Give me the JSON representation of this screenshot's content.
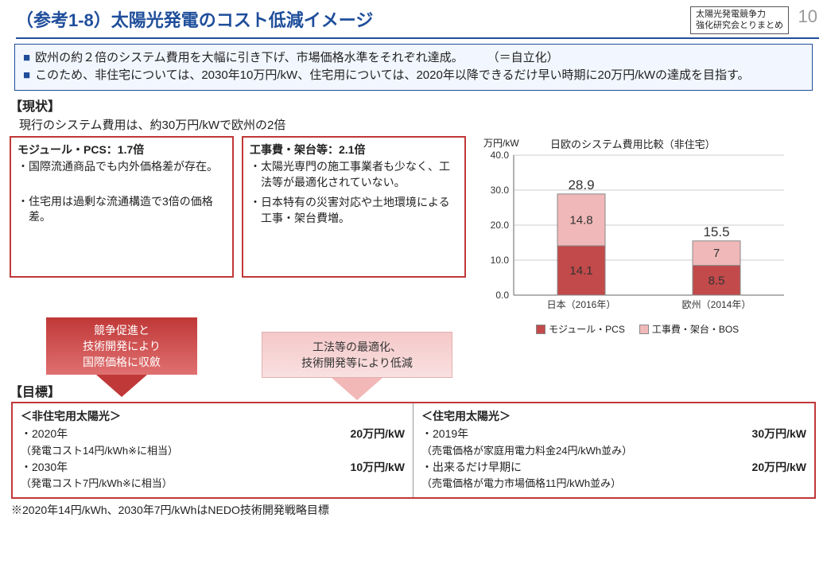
{
  "page_number": "10",
  "badge_line1": "太陽光発電競争力",
  "badge_line2": "強化研究会とりまとめ",
  "title": "（参考1-8）太陽光発電のコスト低減イメージ",
  "summary": {
    "line1": "欧州の約２倍のシステム費用を大幅に引き下げ、市場価格水準をそれぞれ達成。　　　（＝自立化）",
    "line2": "このため、非住宅については、2030年10万円/kW、住宅用については、2020年以降できるだけ早い時期に20万円/kWの達成を目指す。"
  },
  "status": {
    "label": "【現状】",
    "subtitle": "現行のシステム費用は、約30万円/kWで欧州の2倍",
    "module_box": {
      "heading": "モジュール・PCS：1.7倍",
      "b1": "・国際流通商品でも内外価格差が存在。",
      "b2": "・住宅用は過剰な流通構造で3倍の価格差。"
    },
    "const_box": {
      "heading": "工事費・架台等：2.1倍",
      "b1": "・太陽光専門の施工事業者も少なく、工法等が最適化されていない。",
      "b2": "・日本特有の災害対応や土地環境による工事・架台費増。"
    }
  },
  "arrow1": "競争促進と\n技術開発により\n国際価格に収斂",
  "arrow2": "工法等の最適化、\n技術開発等により低減",
  "goals": {
    "label": "【目標】",
    "left": {
      "heading": "＜非住宅用太陽光＞",
      "r1a": "・2020年",
      "r1b": "20万円/kW",
      "r1note": "（発電コスト14円/kWh※に相当）",
      "r2a": "・2030年",
      "r2b": "10万円/kW",
      "r2note": "（発電コスト7円/kWh※に相当）"
    },
    "right": {
      "heading": "＜住宅用太陽光＞",
      "r1a": "・2019年",
      "r1b": "30万円/kW",
      "r1note": "（売電価格が家庭用電力料金24円/kWh並み）",
      "r2a": "・出来るだけ早期に",
      "r2b": "20万円/kW",
      "r2note": "（売電価格が電力市場価格11円/kWh並み）"
    }
  },
  "footnote": "※2020年14円/kWh、2030年7円/kWhはNEDO技術開発戦略目標",
  "chart": {
    "y_unit": "万円/kW",
    "title": "日欧のシステム費用比較（非住宅）",
    "ylim": [
      0,
      40
    ],
    "ytick_step": 10,
    "categories": [
      "日本（2016年）",
      "欧州（2014年）"
    ],
    "series": {
      "module_pcs": {
        "label": "モジュール・PCS",
        "color": "#c24a4a",
        "values": [
          14.1,
          8.5
        ]
      },
      "const_bos": {
        "label": "工事費・架台・BOS",
        "color": "#f0b8b8",
        "values": [
          14.8,
          7.0
        ]
      }
    },
    "totals": [
      28.9,
      15.5
    ],
    "value_labels": {
      "jp_bottom": "14.1",
      "jp_top": "14.8",
      "eu_bottom": "8.5",
      "eu_top": "7"
    },
    "axis_color": "#666666",
    "grid_color": "#cccccc",
    "text_color": "#333333",
    "tick_fontsize": 12,
    "label_fontsize": 13
  }
}
